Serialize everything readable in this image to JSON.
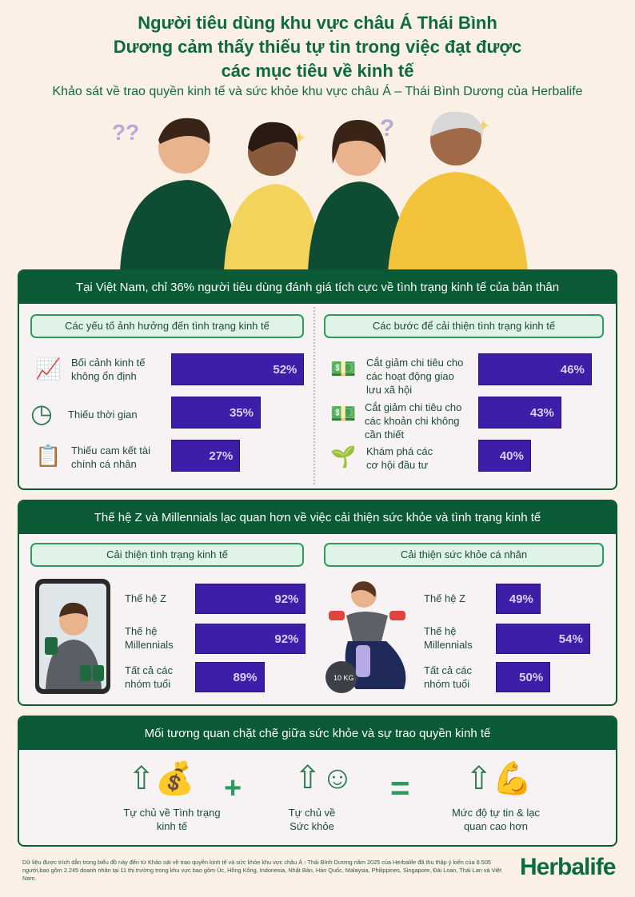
{
  "header": {
    "title_lines": [
      "Người tiêu dùng khu vực châu Á Thái Bình",
      "Dương cảm thấy thiếu tự tin trong việc đạt được",
      "các mục tiêu về kinh tế"
    ],
    "subtitle": "Khảo sát về trao quyền kinh tế và sức khỏe khu vực châu Á – Thái Bình Dương  của Herbalife"
  },
  "colors": {
    "background": "#fbf0e6",
    "brand_green": "#0b5a36",
    "bar_purple": "#3e1ea8",
    "pill_green": "#dff3e7"
  },
  "section1": {
    "title": "Tại Việt Nam, chỉ 36% người tiêu dùng đánh giá tích cực về tình trạng kinh tế của bản thân",
    "left": {
      "heading": "Các yếu tố ảnh hưởng đến tình trạng kinh tế",
      "items": [
        {
          "label": "Bối cảnh kinh tế không ổn định",
          "value": 52,
          "text": "52%",
          "icon": "chart-question-icon"
        },
        {
          "label": "Thiếu thời gian",
          "value": 35,
          "text": "35%",
          "icon": "clock-x-icon"
        },
        {
          "label": "Thiếu cam kết tài chính cá nhân",
          "value": 27,
          "text": "27%",
          "icon": "clipboard-money-icon"
        }
      ]
    },
    "right": {
      "heading": "Các bước để cải thiện tình trạng kinh tế",
      "items": [
        {
          "label": "Cắt giảm chi tiêu cho các hoạt động giao lưu xã hội",
          "value": 46,
          "text": "46%",
          "icon": "money-hand-icon"
        },
        {
          "label": "Cắt giảm chi tiêu cho các khoản chi không cần thiết",
          "value": 43,
          "text": "43%",
          "icon": "money-hand-icon"
        },
        {
          "label": "Khám phá các cơ hội đầu tư",
          "value": 40,
          "text": "40%",
          "icon": "investment-growth-icon"
        }
      ]
    }
  },
  "section2": {
    "title": "Thế hệ Z và Millennials lạc quan hơn về việc cải thiện sức khỏe và tình trạng kinh tế",
    "left": {
      "heading": "Cải thiện tình trạng kinh tế",
      "items": [
        {
          "label": "Thế hệ Z",
          "value": 92,
          "text": "92%"
        },
        {
          "label": "Thế hệ Millennials",
          "value": 92,
          "text": "92%"
        },
        {
          "label": "Tất cả các nhóm tuổi",
          "value": 89,
          "text": "89%"
        }
      ]
    },
    "right": {
      "heading": "Cải thiện sức khỏe cá nhân",
      "items": [
        {
          "label": "Thế hệ Z",
          "value": 49,
          "text": "49%"
        },
        {
          "label": "Thế hệ Millennials",
          "value": 54,
          "text": "54%"
        },
        {
          "label": "Tất cả các nhóm tuổi",
          "value": 50,
          "text": "50%"
        }
      ],
      "kettlebell_label": "10 KG"
    }
  },
  "section3": {
    "title": "Mối tương quan chặt chẽ giữa sức khỏe và sự trao quyền kinh tế",
    "items": [
      {
        "label": "Tự chủ về Tình trạng kinh tế"
      },
      {
        "label": "Tự chủ về Sức khỏe"
      },
      {
        "label": "Mức độ tự tin & lạc quan cao hơn"
      }
    ],
    "plus": "+",
    "equals": "="
  },
  "footer": {
    "note": "Dữ liệu được trích dẫn trong biểu đồ này đến từ Khảo sát về trao quyền kinh tế và sức khỏe khu vực châu Á - Thái Bình Dương năm 2025 của Herbalife đã thu thập ý kiến của 8.505 người,bao gồm 2.245 doanh nhân tại 11 thị trường trong khu vực bao gồm Úc, Hồng Kông, Indonesia, Nhật Bản, Hàn Quốc, Malaysia, Philippines, Singapore, Đài Loan, Thái Lan và Việt Nam.",
    "logo": "Herbalife"
  }
}
